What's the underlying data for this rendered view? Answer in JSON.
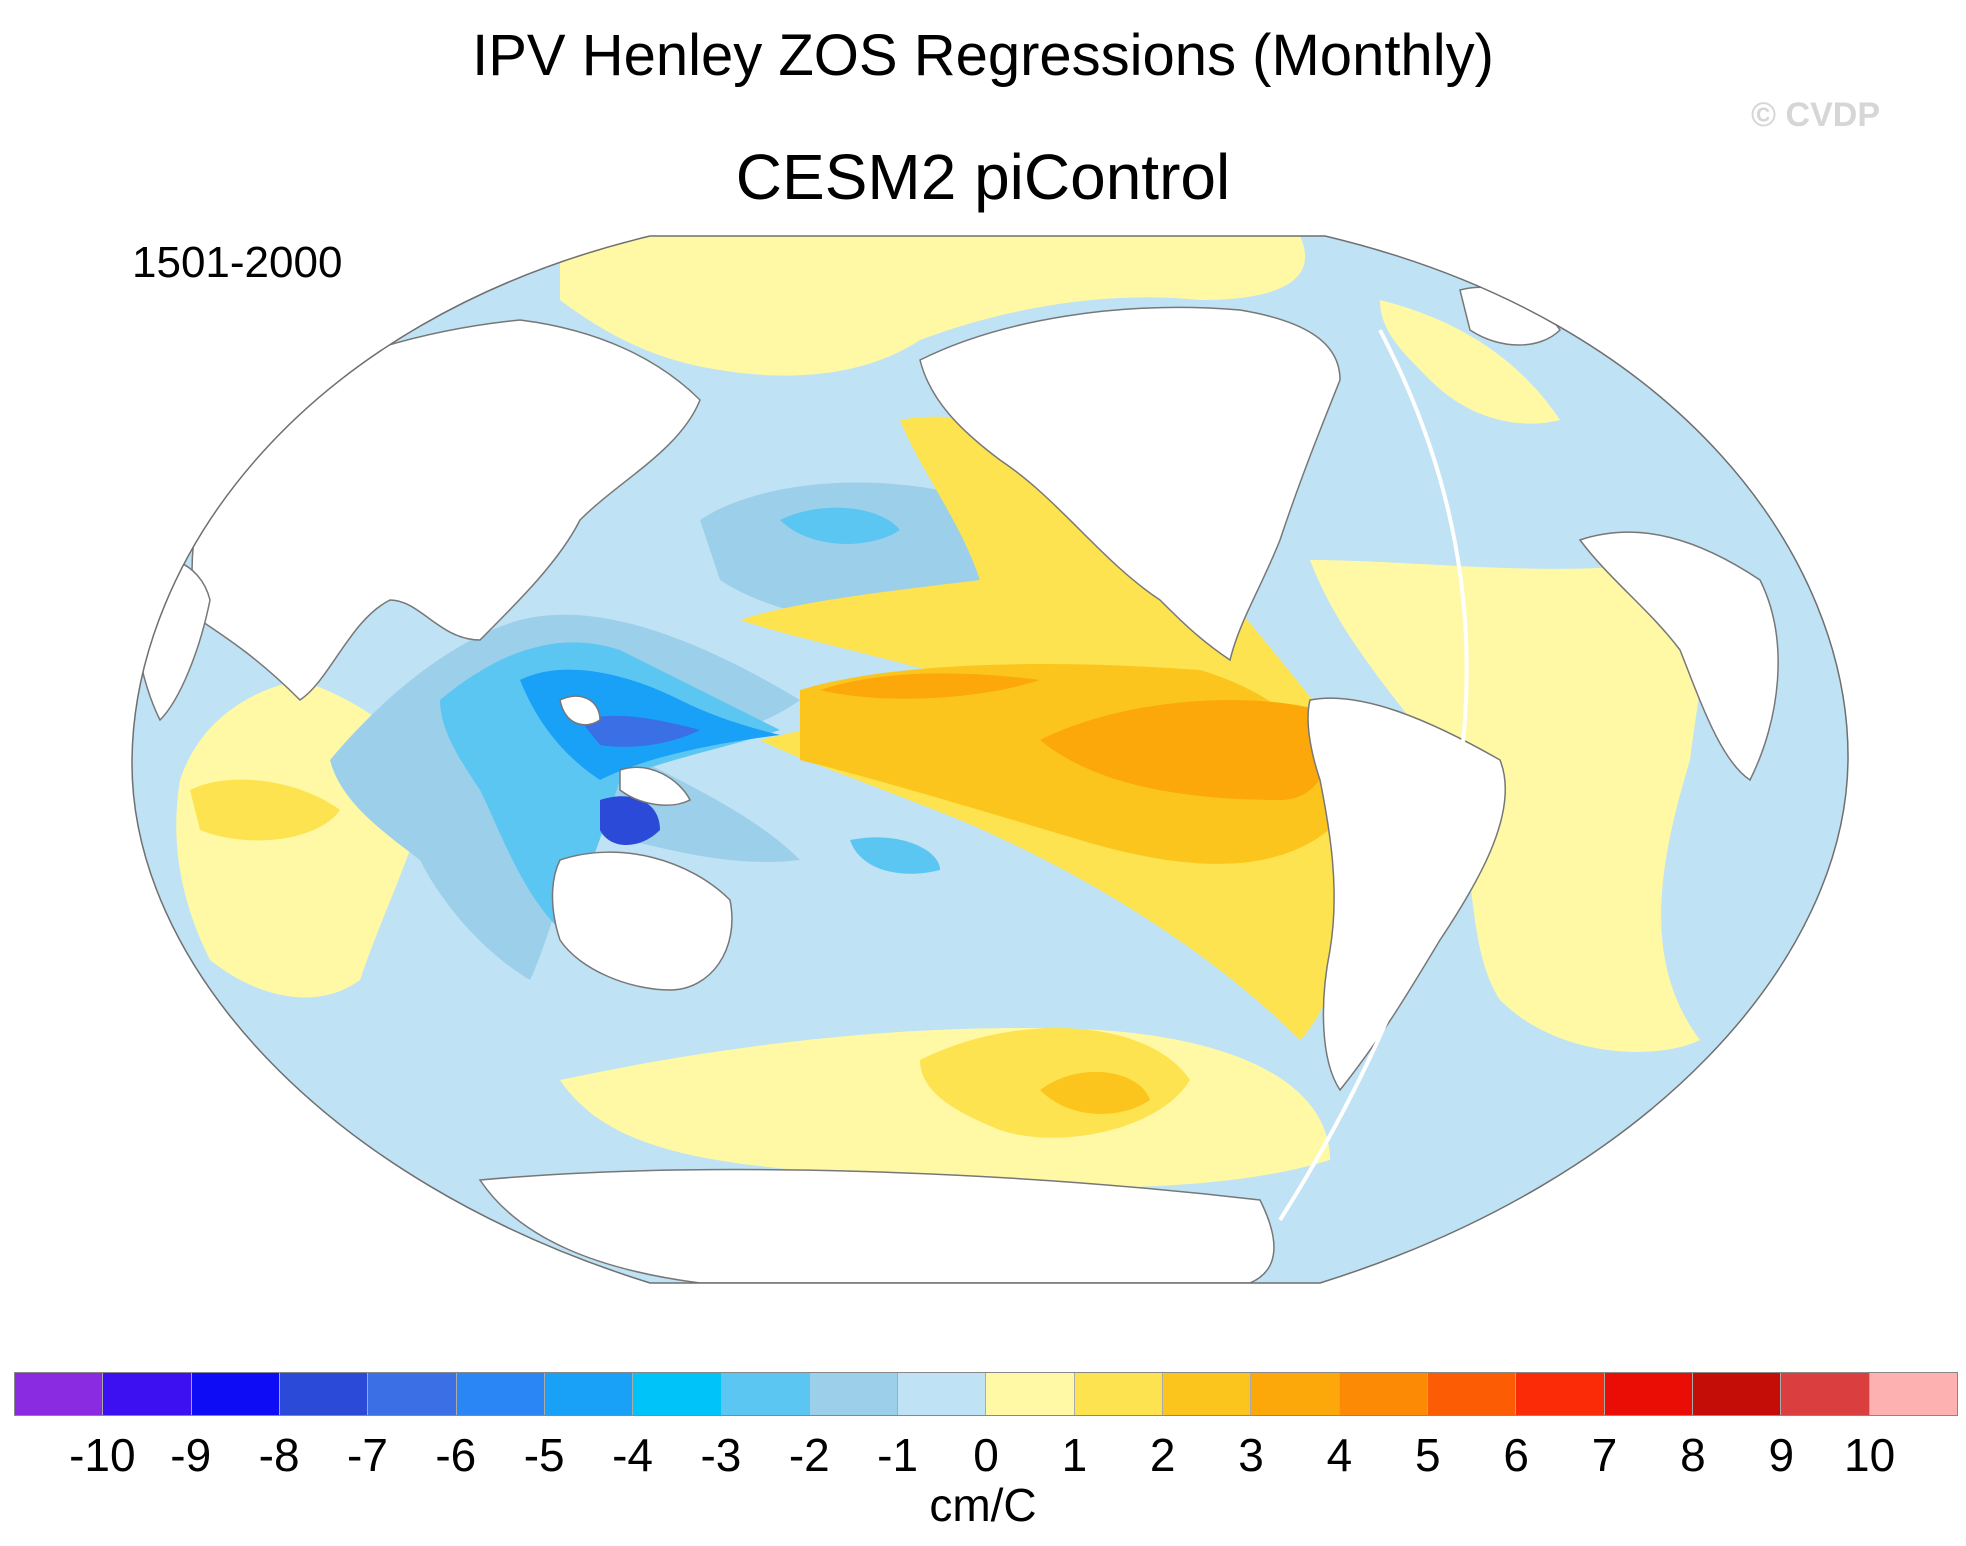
{
  "figure": {
    "title": "IPV Henley ZOS Regressions (Monthly)",
    "subtitle": "CESM2 piControl",
    "period": "1501-2000",
    "credit": "© CVDP"
  },
  "colorbar": {
    "units": "cm/C",
    "tick_labels": [
      "-10",
      "-9",
      "-8",
      "-7",
      "-6",
      "-5",
      "-4",
      "-3",
      "-2",
      "-1",
      "0",
      "1",
      "2",
      "3",
      "4",
      "5",
      "6",
      "7",
      "8",
      "9",
      "10"
    ],
    "colors": [
      "#8a2be2",
      "#3d10f2",
      "#0d0cf5",
      "#2c4ad8",
      "#3a6fe6",
      "#2a86f5",
      "#19a0f7",
      "#00c3f9",
      "#5cc6f2",
      "#9ccfea",
      "#bfe2f4",
      "#fff9a6",
      "#fde34f",
      "#fcc51e",
      "#fca80a",
      "#fc8a05",
      "#fc5c04",
      "#fb2b07",
      "#ea0d05",
      "#c30d06",
      "#db3e3e",
      "#feb1b1"
    ]
  }
}
